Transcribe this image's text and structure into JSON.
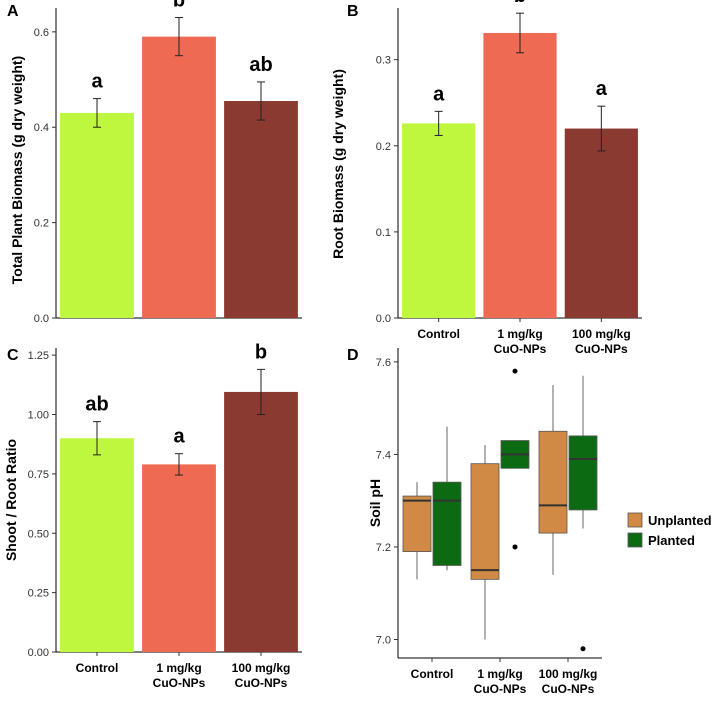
{
  "chart_data": [
    {
      "panel": "A",
      "type": "bar",
      "categories": [
        "Control",
        "1 mg/kg CuO-NPs",
        "100 mg/kg CuO-NPs"
      ],
      "values": [
        0.43,
        0.59,
        0.455
      ],
      "errors": [
        0.03,
        0.04,
        0.04
      ],
      "letters": [
        "a",
        "b",
        "ab"
      ],
      "colors": [
        "#bef73d",
        "#ef6a52",
        "#8b3a32"
      ],
      "ylabel": "Total Plant Biomass (g dry weight)",
      "yticks": [
        "0.0",
        "0.2",
        "0.4",
        "0.6"
      ],
      "ylim": [
        0,
        0.65
      ],
      "show_x_labels": false
    },
    {
      "panel": "B",
      "type": "bar",
      "categories": [
        "Control",
        "1 mg/kg CuO-NPs",
        "100 mg/kg CuO-NPs"
      ],
      "values": [
        0.226,
        0.331,
        0.22
      ],
      "errors": [
        0.014,
        0.023,
        0.026
      ],
      "letters": [
        "a",
        "b",
        "a"
      ],
      "colors": [
        "#bef73d",
        "#ef6a52",
        "#8b3a32"
      ],
      "ylabel": "Root Biomass (g dry weight)",
      "yticks": [
        "0.0",
        "0.1",
        "0.2",
        "0.3"
      ],
      "ylim": [
        0,
        0.36
      ],
      "show_x_labels": true
    },
    {
      "panel": "C",
      "type": "bar",
      "categories": [
        "Control",
        "1 mg/kg CuO-NPs",
        "100 mg/kg CuO-NPs"
      ],
      "values": [
        0.9,
        0.79,
        1.095
      ],
      "errors": [
        0.07,
        0.045,
        0.095
      ],
      "letters": [
        "ab",
        "a",
        "b"
      ],
      "colors": [
        "#bef73d",
        "#ef6a52",
        "#8b3a32"
      ],
      "ylabel": "Shoot / Root Ratio",
      "yticks": [
        "0.00",
        "0.25",
        "0.50",
        "0.75",
        "1.00",
        "1.25"
      ],
      "ylim": [
        0,
        1.28
      ],
      "show_x_labels": true
    },
    {
      "panel": "D",
      "type": "box",
      "categories": [
        "Control",
        "1 mg/kg CuO-NPs",
        "100 mg/kg CuO-NPs"
      ],
      "ylabel": "Soil pH",
      "yticks": [
        "7.0",
        "7.2",
        "7.4",
        "7.6"
      ],
      "ylim": [
        6.96,
        7.63
      ],
      "series": [
        {
          "name": "Unplanted",
          "color": "#d08a45",
          "boxes": [
            {
              "min": 7.13,
              "q1": 7.19,
              "median": 7.3,
              "q3": 7.31,
              "max": 7.34,
              "outliers": []
            },
            {
              "min": 7.0,
              "q1": 7.13,
              "median": 7.15,
              "q3": 7.38,
              "max": 7.42,
              "outliers": []
            },
            {
              "min": 7.14,
              "q1": 7.23,
              "median": 7.29,
              "q3": 7.45,
              "max": 7.55,
              "outliers": []
            }
          ]
        },
        {
          "name": "Planted",
          "color": "#0c6a12",
          "boxes": [
            {
              "min": 7.15,
              "q1": 7.16,
              "median": 7.3,
              "q3": 7.34,
              "max": 7.46,
              "outliers": []
            },
            {
              "min": 7.37,
              "q1": 7.37,
              "median": 7.4,
              "q3": 7.43,
              "max": 7.43,
              "outliers": [
                7.58,
                7.2
              ]
            },
            {
              "min": 7.24,
              "q1": 7.28,
              "median": 7.39,
              "q3": 7.44,
              "max": 7.57,
              "outliers": [
                6.98
              ]
            }
          ]
        }
      ],
      "legend": [
        "Unplanted",
        "Planted"
      ]
    }
  ]
}
